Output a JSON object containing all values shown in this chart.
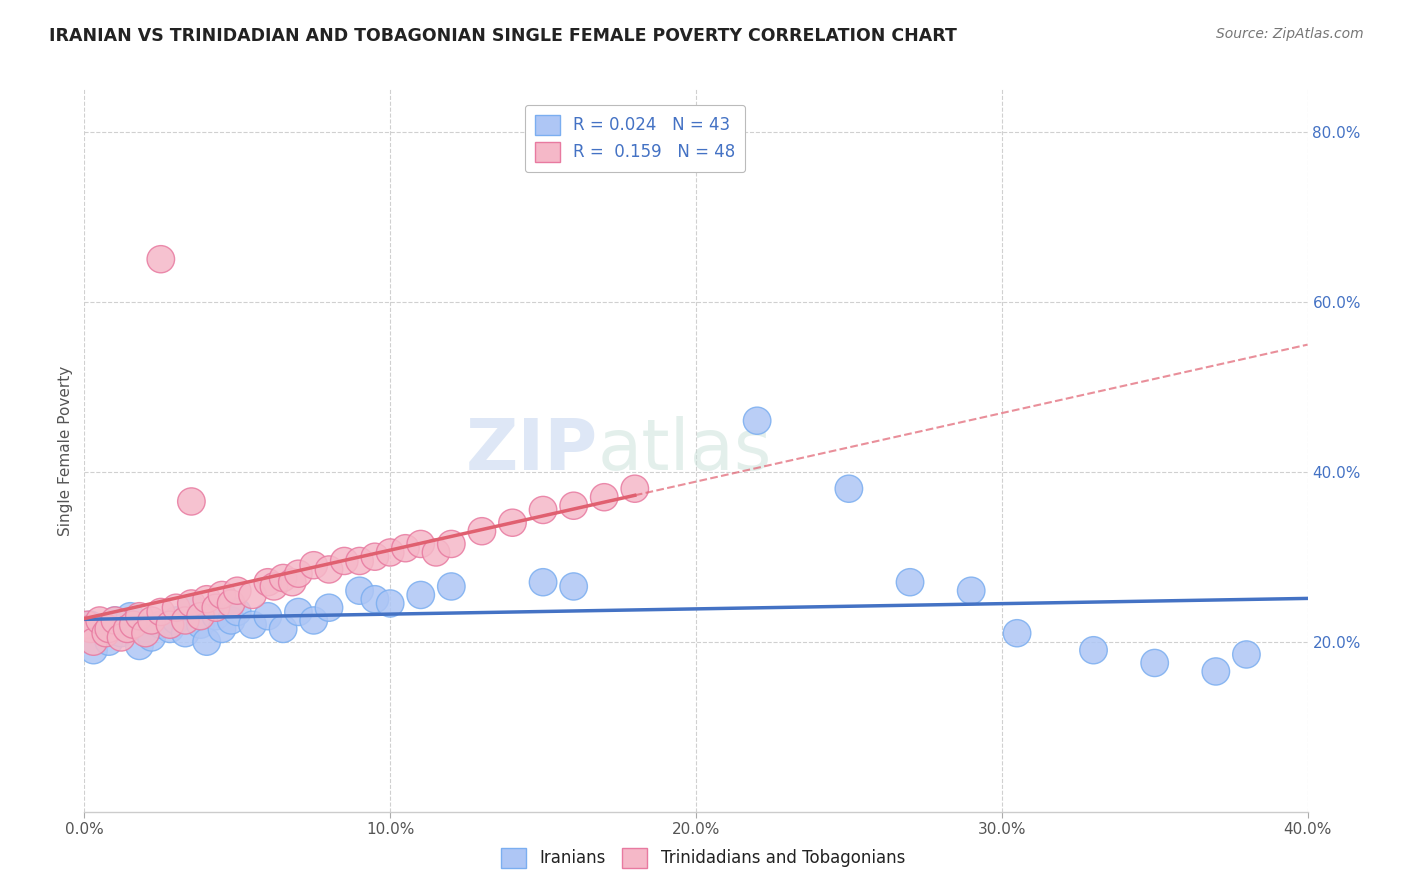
{
  "title": "IRANIAN VS TRINIDADIAN AND TOBAGONIAN SINGLE FEMALE POVERTY CORRELATION CHART",
  "source": "Source: ZipAtlas.com",
  "ylabel": "Single Female Poverty",
  "xlim": [
    0.0,
    0.4
  ],
  "ylim": [
    0.0,
    0.85
  ],
  "xtick_labels": [
    "0.0%",
    "10.0%",
    "20.0%",
    "30.0%",
    "40.0%"
  ],
  "xtick_vals": [
    0.0,
    0.1,
    0.2,
    0.3,
    0.4
  ],
  "ytick_labels_right": [
    "20.0%",
    "40.0%",
    "60.0%",
    "80.0%"
  ],
  "ytick_vals_right": [
    0.2,
    0.4,
    0.6,
    0.8
  ],
  "R_iranian": 0.024,
  "N_iranian": 43,
  "R_trinidadian": 0.159,
  "N_trinidadian": 48,
  "legend_labels": [
    "Iranians",
    "Trinidadians and Tobagonians"
  ],
  "color_iranian": "#aec6f5",
  "color_trinidadian": "#f5b8c8",
  "color_iranian_edge": "#7baef0",
  "color_trinidadian_edge": "#e87aa0",
  "line_color_iranian": "#4472c4",
  "line_color_trinidadian": "#e06070",
  "watermark_zip": "ZIP",
  "watermark_atlas": "atlas",
  "background_color": "#ffffff",
  "grid_color": "#d0d0d0",
  "iranians_x": [
    0.002,
    0.003,
    0.005,
    0.008,
    0.01,
    0.012,
    0.015,
    0.018,
    0.02,
    0.022,
    0.025,
    0.028,
    0.03,
    0.033,
    0.035,
    0.038,
    0.04,
    0.043,
    0.045,
    0.048,
    0.05,
    0.055,
    0.06,
    0.065,
    0.07,
    0.075,
    0.08,
    0.09,
    0.095,
    0.1,
    0.11,
    0.12,
    0.15,
    0.16,
    0.22,
    0.25,
    0.27,
    0.29,
    0.305,
    0.33,
    0.35,
    0.37,
    0.38
  ],
  "iranians_y": [
    0.22,
    0.19,
    0.215,
    0.2,
    0.225,
    0.21,
    0.23,
    0.195,
    0.215,
    0.205,
    0.22,
    0.215,
    0.225,
    0.21,
    0.24,
    0.22,
    0.2,
    0.23,
    0.215,
    0.225,
    0.235,
    0.22,
    0.23,
    0.215,
    0.235,
    0.225,
    0.24,
    0.26,
    0.25,
    0.245,
    0.255,
    0.265,
    0.27,
    0.265,
    0.46,
    0.38,
    0.27,
    0.26,
    0.21,
    0.19,
    0.175,
    0.165,
    0.185
  ],
  "trinidadians_x": [
    0.001,
    0.002,
    0.003,
    0.005,
    0.007,
    0.008,
    0.01,
    0.012,
    0.014,
    0.016,
    0.018,
    0.02,
    0.022,
    0.025,
    0.028,
    0.03,
    0.033,
    0.035,
    0.038,
    0.04,
    0.043,
    0.045,
    0.048,
    0.05,
    0.055,
    0.06,
    0.062,
    0.065,
    0.068,
    0.07,
    0.075,
    0.08,
    0.085,
    0.09,
    0.095,
    0.1,
    0.105,
    0.11,
    0.115,
    0.12,
    0.13,
    0.14,
    0.15,
    0.16,
    0.17,
    0.18,
    0.025,
    0.035
  ],
  "trinidadians_y": [
    0.22,
    0.215,
    0.2,
    0.225,
    0.21,
    0.215,
    0.225,
    0.205,
    0.215,
    0.22,
    0.23,
    0.21,
    0.225,
    0.235,
    0.22,
    0.24,
    0.225,
    0.245,
    0.23,
    0.25,
    0.24,
    0.255,
    0.245,
    0.26,
    0.255,
    0.27,
    0.265,
    0.275,
    0.27,
    0.28,
    0.29,
    0.285,
    0.295,
    0.295,
    0.3,
    0.305,
    0.31,
    0.315,
    0.305,
    0.315,
    0.33,
    0.34,
    0.355,
    0.36,
    0.37,
    0.38,
    0.65,
    0.365
  ]
}
